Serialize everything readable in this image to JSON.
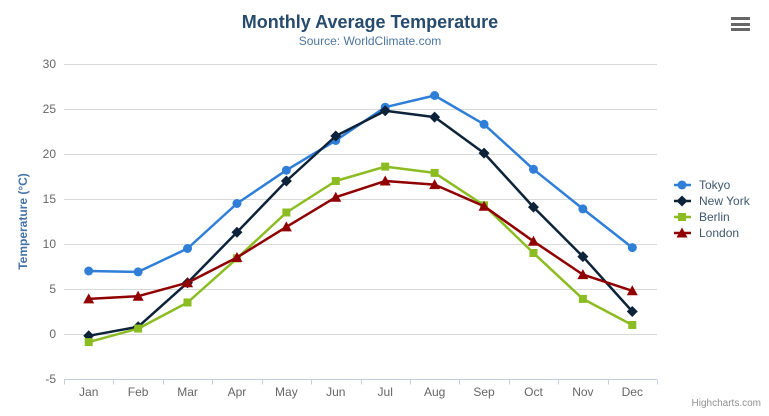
{
  "chart_data": {
    "type": "line",
    "title": "Monthly Average Temperature",
    "subtitle": "Source: WorldClimate.com",
    "xlabel": "",
    "ylabel": "Temperature (°C)",
    "categories": [
      "Jan",
      "Feb",
      "Mar",
      "Apr",
      "May",
      "Jun",
      "Jul",
      "Aug",
      "Sep",
      "Oct",
      "Nov",
      "Dec"
    ],
    "ylim": [
      -5,
      30
    ],
    "yticks": [
      -5,
      0,
      5,
      10,
      15,
      20,
      25,
      30
    ],
    "grid": true,
    "legend_position": "right",
    "series": [
      {
        "name": "Tokyo",
        "marker": "circle",
        "color": "#2f7ed8",
        "values": [
          7.0,
          6.9,
          9.5,
          14.5,
          18.2,
          21.5,
          25.2,
          26.5,
          23.3,
          18.3,
          13.9,
          9.6
        ]
      },
      {
        "name": "New York",
        "marker": "diamond",
        "color": "#0d233a",
        "values": [
          -0.2,
          0.8,
          5.7,
          11.3,
          17.0,
          22.0,
          24.8,
          24.1,
          20.1,
          14.1,
          8.6,
          2.5
        ]
      },
      {
        "name": "Berlin",
        "marker": "square",
        "color": "#8bbc21",
        "values": [
          -0.9,
          0.6,
          3.5,
          8.4,
          13.5,
          17.0,
          18.6,
          17.9,
          14.3,
          9.0,
          3.9,
          1.0
        ]
      },
      {
        "name": "London",
        "marker": "triangle",
        "color": "#910000",
        "values": [
          3.9,
          4.2,
          5.7,
          8.5,
          11.9,
          15.2,
          17.0,
          16.6,
          14.2,
          10.3,
          6.6,
          4.8
        ]
      }
    ]
  },
  "menu": {
    "icon": "hamburger-icon"
  },
  "credits": {
    "label": "Highcharts.com"
  },
  "colors": {
    "title": "#274b6d",
    "subtitle": "#4d759e",
    "axis_title": "#4572a7",
    "axis_labels": "#666666",
    "gridline": "#d8d8d8",
    "axis_line": "#c0d0e0",
    "legend_text": "#3e576f",
    "menu_icon": "#666666",
    "credits_text": "#909090"
  }
}
